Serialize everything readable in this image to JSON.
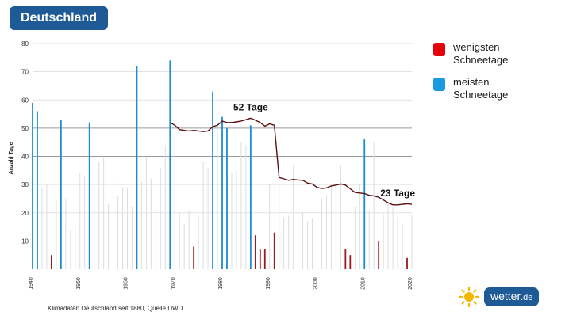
{
  "title": "Deutschland",
  "legend": [
    {
      "label": "wenigsten Schneetage",
      "color": "#e3000b"
    },
    {
      "label": "meisten Schneetage",
      "color": "#1a9ae0"
    }
  ],
  "source_note": "Klimadaten Deutschland seit 1880, Quelle DWD",
  "brand": {
    "name": "wetter",
    "tld": ".de",
    "icon": "sun-icon"
  },
  "chart_data": {
    "type": "bar",
    "ylabel": "Anzahl Tage",
    "ylim": [
      0,
      80
    ],
    "yticks": [
      10,
      20,
      30,
      40,
      50,
      60,
      70,
      80
    ],
    "xlim": [
      1940,
      2020
    ],
    "xticks": [
      1940,
      1950,
      1960,
      1970,
      1980,
      1990,
      2000,
      2010,
      2020
    ],
    "grid": true,
    "colors": {
      "normal": "#dddddd",
      "least": "#9b1c1c",
      "most": "#1d8ad2",
      "trend": "#5a0f0f"
    },
    "bars": [
      {
        "x": 1940,
        "v": 59,
        "k": "most"
      },
      {
        "x": 1941,
        "v": 56,
        "k": "most"
      },
      {
        "x": 1942,
        "v": 29,
        "k": "normal"
      },
      {
        "x": 1943,
        "v": 30,
        "k": "normal"
      },
      {
        "x": 1944,
        "v": 5,
        "k": "least"
      },
      {
        "x": 1945,
        "v": 25,
        "k": "normal"
      },
      {
        "x": 1946,
        "v": 53,
        "k": "most"
      },
      {
        "x": 1947,
        "v": 25,
        "k": "normal"
      },
      {
        "x": 1948,
        "v": 14,
        "k": "normal"
      },
      {
        "x": 1949,
        "v": 15,
        "k": "normal"
      },
      {
        "x": 1950,
        "v": 34,
        "k": "normal"
      },
      {
        "x": 1951,
        "v": 33,
        "k": "normal"
      },
      {
        "x": 1952,
        "v": 52,
        "k": "most"
      },
      {
        "x": 1953,
        "v": 29,
        "k": "normal"
      },
      {
        "x": 1954,
        "v": 38,
        "k": "normal"
      },
      {
        "x": 1955,
        "v": 40,
        "k": "normal"
      },
      {
        "x": 1956,
        "v": 23,
        "k": "normal"
      },
      {
        "x": 1957,
        "v": 33,
        "k": "normal"
      },
      {
        "x": 1958,
        "v": 26,
        "k": "normal"
      },
      {
        "x": 1959,
        "v": 29,
        "k": "normal"
      },
      {
        "x": 1960,
        "v": 29,
        "k": "normal"
      },
      {
        "x": 1961,
        "v": 22,
        "k": "normal"
      },
      {
        "x": 1962,
        "v": 72,
        "k": "most"
      },
      {
        "x": 1963,
        "v": 31,
        "k": "normal"
      },
      {
        "x": 1964,
        "v": 40,
        "k": "normal"
      },
      {
        "x": 1965,
        "v": 32,
        "k": "normal"
      },
      {
        "x": 1966,
        "v": 21,
        "k": "normal"
      },
      {
        "x": 1967,
        "v": 36,
        "k": "normal"
      },
      {
        "x": 1968,
        "v": 44,
        "k": "normal"
      },
      {
        "x": 1969,
        "v": 74,
        "k": "most"
      },
      {
        "x": 1970,
        "v": 48,
        "k": "normal"
      },
      {
        "x": 1971,
        "v": 20,
        "k": "normal"
      },
      {
        "x": 1972,
        "v": 16,
        "k": "normal"
      },
      {
        "x": 1973,
        "v": 21,
        "k": "normal"
      },
      {
        "x": 1974,
        "v": 8,
        "k": "least"
      },
      {
        "x": 1975,
        "v": 19,
        "k": "normal"
      },
      {
        "x": 1976,
        "v": 38,
        "k": "normal"
      },
      {
        "x": 1977,
        "v": 36,
        "k": "normal"
      },
      {
        "x": 1978,
        "v": 63,
        "k": "most"
      },
      {
        "x": 1979,
        "v": 52,
        "k": "normal"
      },
      {
        "x": 1980,
        "v": 54,
        "k": "most"
      },
      {
        "x": 1981,
        "v": 50,
        "k": "most"
      },
      {
        "x": 1982,
        "v": 34,
        "k": "normal"
      },
      {
        "x": 1983,
        "v": 35,
        "k": "normal"
      },
      {
        "x": 1984,
        "v": 45,
        "k": "normal"
      },
      {
        "x": 1985,
        "v": 44,
        "k": "normal"
      },
      {
        "x": 1986,
        "v": 51,
        "k": "most"
      },
      {
        "x": 1987,
        "v": 12,
        "k": "least"
      },
      {
        "x": 1988,
        "v": 7,
        "k": "least"
      },
      {
        "x": 1989,
        "v": 7,
        "k": "least"
      },
      {
        "x": 1990,
        "v": 30,
        "k": "normal"
      },
      {
        "x": 1991,
        "v": 13,
        "k": "least"
      },
      {
        "x": 1992,
        "v": 30,
        "k": "normal"
      },
      {
        "x": 1993,
        "v": 18,
        "k": "normal"
      },
      {
        "x": 1994,
        "v": 19,
        "k": "normal"
      },
      {
        "x": 1995,
        "v": 37,
        "k": "normal"
      },
      {
        "x": 1996,
        "v": 15,
        "k": "normal"
      },
      {
        "x": 1997,
        "v": 20,
        "k": "normal"
      },
      {
        "x": 1998,
        "v": 17,
        "k": "normal"
      },
      {
        "x": 1999,
        "v": 18,
        "k": "normal"
      },
      {
        "x": 2000,
        "v": 18,
        "k": "normal"
      },
      {
        "x": 2001,
        "v": 25,
        "k": "normal"
      },
      {
        "x": 2002,
        "v": 26,
        "k": "normal"
      },
      {
        "x": 2003,
        "v": 30,
        "k": "normal"
      },
      {
        "x": 2004,
        "v": 28,
        "k": "normal"
      },
      {
        "x": 2005,
        "v": 37,
        "k": "normal"
      },
      {
        "x": 2006,
        "v": 7,
        "k": "least"
      },
      {
        "x": 2007,
        "v": 5,
        "k": "least"
      },
      {
        "x": 2008,
        "v": 22,
        "k": "normal"
      },
      {
        "x": 2009,
        "v": 30,
        "k": "normal"
      },
      {
        "x": 2010,
        "v": 46,
        "k": "most"
      },
      {
        "x": 2011,
        "v": 21,
        "k": "normal"
      },
      {
        "x": 2012,
        "v": 45,
        "k": "normal"
      },
      {
        "x": 2013,
        "v": 10,
        "k": "least"
      },
      {
        "x": 2014,
        "v": 20,
        "k": "normal"
      },
      {
        "x": 2015,
        "v": 24,
        "k": "normal"
      },
      {
        "x": 2016,
        "v": 22,
        "k": "normal"
      },
      {
        "x": 2017,
        "v": 18,
        "k": "normal"
      },
      {
        "x": 2018,
        "v": 16,
        "k": "normal"
      },
      {
        "x": 2019,
        "v": 4,
        "k": "least"
      },
      {
        "x": 2020,
        "v": 19,
        "k": "normal"
      }
    ],
    "trend": [
      [
        1969,
        52
      ],
      [
        1970,
        51
      ],
      [
        1971,
        49.5
      ],
      [
        1972,
        49.2
      ],
      [
        1973,
        49
      ],
      [
        1974,
        49.2
      ],
      [
        1975,
        49
      ],
      [
        1976,
        48.8
      ],
      [
        1977,
        49
      ],
      [
        1978,
        50.5
      ],
      [
        1979,
        51
      ],
      [
        1980,
        52.5
      ],
      [
        1981,
        52
      ],
      [
        1982,
        52
      ],
      [
        1983,
        52.2
      ],
      [
        1984,
        52.5
      ],
      [
        1985,
        53
      ],
      [
        1986,
        53.5
      ],
      [
        1987,
        52.8
      ],
      [
        1988,
        52
      ],
      [
        1989,
        50.7
      ],
      [
        1990,
        51.5
      ],
      [
        1991,
        51
      ],
      [
        1992,
        32.5
      ],
      [
        1993,
        32
      ],
      [
        1994,
        31.5
      ],
      [
        1995,
        31.8
      ],
      [
        1996,
        31.6
      ],
      [
        1997,
        31.5
      ],
      [
        1998,
        30.5
      ],
      [
        1999,
        30.2
      ],
      [
        2000,
        29
      ],
      [
        2001,
        28.6
      ],
      [
        2002,
        28.8
      ],
      [
        2003,
        29.5
      ],
      [
        2004,
        29.8
      ],
      [
        2005,
        30.2
      ],
      [
        2006,
        29.8
      ],
      [
        2007,
        28.5
      ],
      [
        2008,
        27.2
      ],
      [
        2009,
        27
      ],
      [
        2010,
        26.8
      ],
      [
        2011,
        26.2
      ],
      [
        2012,
        26
      ],
      [
        2013,
        25.5
      ],
      [
        2014,
        24.5
      ],
      [
        2015,
        23.5
      ],
      [
        2016,
        22.8
      ],
      [
        2017,
        22.8
      ],
      [
        2018,
        23
      ],
      [
        2019,
        23.2
      ],
      [
        2020,
        23
      ]
    ],
    "annotations": [
      {
        "text": "52 Tage",
        "x": 1986,
        "y": 53.5
      },
      {
        "text": "23 Tage",
        "x": 2020,
        "y": 23
      }
    ]
  }
}
